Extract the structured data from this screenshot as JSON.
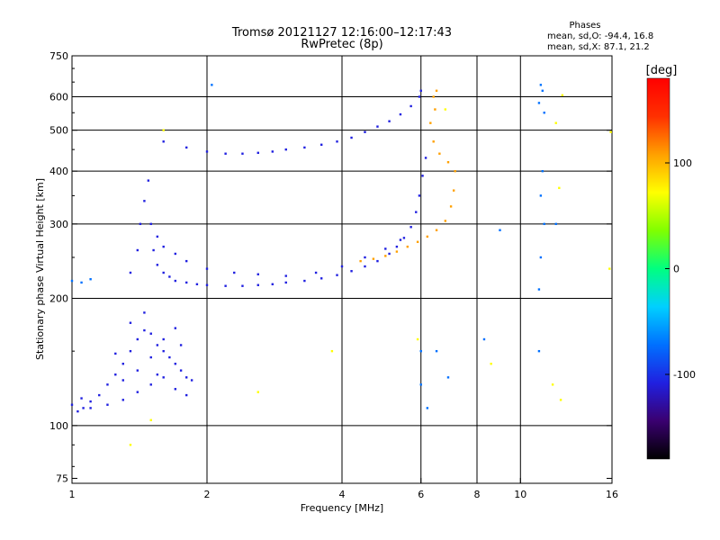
{
  "header": {
    "title_line1": "Tromsø 20121127 12:16:00–12:17:43",
    "title_line2": "RwPretec (8p)",
    "info_title": "Phases",
    "info_o": "mean, sd,O: -94.4, 16.8",
    "info_x": "mean, sd,X:  87.1, 21.2"
  },
  "colorbar": {
    "label": "[deg]",
    "ticks": [
      {
        "value": 100,
        "label": "100"
      },
      {
        "value": 0,
        "label": "0"
      },
      {
        "value": -100,
        "label": "-100"
      }
    ],
    "range": [
      -180,
      180
    ],
    "palette": [
      "#000000",
      "#3a0070",
      "#2020e0",
      "#0070ff",
      "#00d0ff",
      "#00ff80",
      "#80ff00",
      "#ffff00",
      "#ffa000",
      "#ff3000",
      "#ff0000"
    ]
  },
  "chart_data": {
    "type": "scatter",
    "title": "Tromsø 20121127 12:16:00–12:17:43",
    "subtitle": "RwPretec (8p)",
    "xlabel": "Frequency [MHz]",
    "ylabel": "Stationary phase Virtual Height [km]",
    "x_scale": "log",
    "y_scale": "log",
    "xlim": [
      1,
      16
    ],
    "ylim": [
      73,
      750
    ],
    "grid": true,
    "x_ticks": [
      {
        "value": 1,
        "label": "1"
      },
      {
        "value": 2,
        "label": "2"
      },
      {
        "value": 4,
        "label": "4"
      },
      {
        "value": 6,
        "label": "6"
      },
      {
        "value": 8,
        "label": "8"
      },
      {
        "value": 10,
        "label": "10"
      },
      {
        "value": 16,
        "label": "16"
      }
    ],
    "x_gridlines": [
      2,
      4,
      6,
      8,
      10
    ],
    "y_ticks": [
      {
        "value": 75,
        "label": "75"
      },
      {
        "value": 100,
        "label": "100"
      },
      {
        "value": 200,
        "label": "200"
      },
      {
        "value": 300,
        "label": "300"
      },
      {
        "value": 400,
        "label": "400"
      },
      {
        "value": 500,
        "label": "500"
      },
      {
        "value": 600,
        "label": "600"
      },
      {
        "value": 750,
        "label": "750"
      }
    ],
    "y_gridlines": [
      100,
      200,
      300,
      400,
      500,
      600
    ],
    "point_color_meaning": "phase [deg]",
    "series": [
      {
        "points": [
          [
            1.0,
            112
          ],
          [
            1.03,
            108
          ],
          [
            1.06,
            110
          ],
          [
            1.1,
            114
          ],
          [
            1.15,
            118
          ],
          [
            1.2,
            125
          ],
          [
            1.25,
            132
          ],
          [
            1.3,
            140
          ],
          [
            1.35,
            150
          ],
          [
            1.4,
            160
          ],
          [
            1.45,
            168
          ],
          [
            1.5,
            165
          ],
          [
            1.55,
            155
          ],
          [
            1.6,
            150
          ],
          [
            1.65,
            145
          ],
          [
            1.7,
            140
          ],
          [
            1.75,
            135
          ],
          [
            1.8,
            130
          ],
          [
            1.85,
            128
          ],
          [
            1.05,
            116
          ],
          [
            1.1,
            110
          ],
          [
            1.2,
            112
          ],
          [
            1.3,
            115
          ],
          [
            1.4,
            120
          ],
          [
            1.5,
            125
          ],
          [
            1.6,
            130
          ],
          [
            1.7,
            122
          ],
          [
            1.8,
            118
          ],
          [
            1.35,
            175
          ],
          [
            1.45,
            185
          ],
          [
            1.5,
            145
          ],
          [
            1.6,
            160
          ],
          [
            1.7,
            170
          ],
          [
            1.25,
            148
          ],
          [
            1.3,
            128
          ],
          [
            1.4,
            135
          ],
          [
            1.55,
            132
          ],
          [
            1.75,
            155
          ]
        ],
        "phase": -100
      },
      {
        "points": [
          [
            1.35,
            230
          ],
          [
            1.4,
            260
          ],
          [
            1.42,
            300
          ],
          [
            1.45,
            340
          ],
          [
            1.48,
            380
          ],
          [
            1.5,
            300
          ],
          [
            1.52,
            260
          ],
          [
            1.55,
            240
          ],
          [
            1.6,
            230
          ],
          [
            1.65,
            225
          ],
          [
            1.7,
            220
          ],
          [
            1.8,
            218
          ],
          [
            1.9,
            216
          ],
          [
            2.0,
            215
          ],
          [
            2.2,
            214
          ],
          [
            2.4,
            214
          ],
          [
            2.6,
            215
          ],
          [
            2.8,
            216
          ],
          [
            3.0,
            218
          ],
          [
            3.3,
            220
          ],
          [
            3.6,
            223
          ],
          [
            3.9,
            227
          ],
          [
            4.2,
            232
          ],
          [
            4.5,
            238
          ],
          [
            4.8,
            245
          ],
          [
            5.1,
            255
          ],
          [
            5.3,
            265
          ],
          [
            5.5,
            278
          ],
          [
            5.7,
            295
          ],
          [
            5.85,
            320
          ],
          [
            5.95,
            350
          ],
          [
            6.05,
            390
          ],
          [
            6.15,
            430
          ],
          [
            1.55,
            280
          ],
          [
            1.6,
            265
          ],
          [
            1.7,
            255
          ],
          [
            1.8,
            245
          ],
          [
            2.0,
            235
          ],
          [
            2.3,
            230
          ],
          [
            2.6,
            228
          ],
          [
            3.0,
            226
          ],
          [
            3.5,
            230
          ],
          [
            4.0,
            238
          ],
          [
            4.5,
            250
          ],
          [
            5.0,
            262
          ],
          [
            5.4,
            275
          ]
        ],
        "phase": -110
      },
      {
        "points": [
          [
            1.6,
            470
          ],
          [
            1.8,
            455
          ],
          [
            2.0,
            445
          ],
          [
            2.2,
            440
          ],
          [
            2.4,
            440
          ],
          [
            2.6,
            442
          ],
          [
            2.8,
            445
          ],
          [
            3.0,
            450
          ],
          [
            3.3,
            455
          ],
          [
            3.6,
            462
          ],
          [
            3.9,
            470
          ],
          [
            4.2,
            480
          ],
          [
            4.5,
            495
          ],
          [
            4.8,
            510
          ],
          [
            5.1,
            525
          ],
          [
            5.4,
            545
          ],
          [
            5.7,
            570
          ],
          [
            5.95,
            600
          ],
          [
            6.0,
            620
          ]
        ],
        "phase": -105
      },
      {
        "points": [
          [
            4.4,
            245
          ],
          [
            4.7,
            248
          ],
          [
            5.0,
            252
          ],
          [
            5.3,
            258
          ],
          [
            5.6,
            265
          ],
          [
            5.9,
            272
          ],
          [
            6.2,
            280
          ],
          [
            6.5,
            290
          ],
          [
            6.8,
            305
          ],
          [
            7.0,
            330
          ],
          [
            7.1,
            360
          ],
          [
            7.15,
            400
          ],
          [
            6.9,
            420
          ],
          [
            6.6,
            440
          ],
          [
            6.4,
            470
          ],
          [
            6.3,
            520
          ],
          [
            6.4,
            600
          ],
          [
            6.5,
            620
          ],
          [
            6.45,
            560
          ]
        ],
        "phase": 100
      },
      {
        "points": [
          [
            1.0,
            220
          ],
          [
            1.05,
            218
          ],
          [
            1.1,
            222
          ],
          [
            2.05,
            640
          ],
          [
            11.1,
            640
          ],
          [
            11.2,
            620
          ],
          [
            11.0,
            580
          ],
          [
            11.3,
            550
          ],
          [
            11.2,
            400
          ],
          [
            11.1,
            350
          ],
          [
            11.3,
            300
          ],
          [
            11.1,
            250
          ],
          [
            11.0,
            210
          ],
          [
            9.0,
            290
          ],
          [
            12.0,
            300
          ],
          [
            6.9,
            130
          ],
          [
            6.0,
            150
          ],
          [
            6.0,
            125
          ],
          [
            6.5,
            150
          ],
          [
            6.2,
            110
          ],
          [
            8.3,
            160
          ],
          [
            11.0,
            150
          ]
        ],
        "phase": -60
      },
      {
        "points": [
          [
            1.6,
            500
          ],
          [
            3.8,
            150
          ],
          [
            2.6,
            120
          ],
          [
            1.35,
            90
          ],
          [
            1.5,
            103
          ],
          [
            12.4,
            605
          ],
          [
            12.2,
            365
          ],
          [
            8.6,
            140
          ],
          [
            11.8,
            125
          ],
          [
            12.3,
            115
          ],
          [
            15.8,
            235
          ],
          [
            15.9,
            495
          ],
          [
            12.0,
            520
          ],
          [
            6.8,
            560
          ],
          [
            5.9,
            160
          ]
        ],
        "phase": 60
      }
    ]
  }
}
